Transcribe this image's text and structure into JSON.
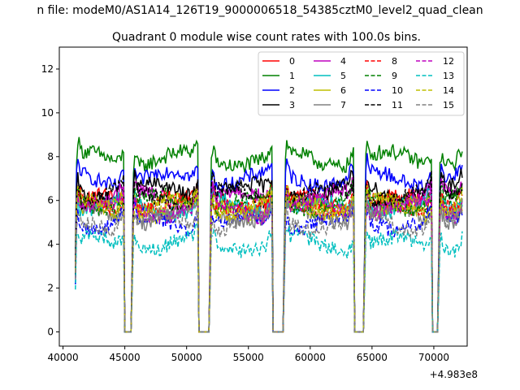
{
  "chart_data": {
    "type": "line",
    "suptitle": "n file: modeM0/AS1A14_126T19_9000006518_54385cztM0_level2_quad_clean",
    "title": "Quadrant 0 module wise count rates with 100.0s bins.",
    "xlabel": "",
    "ylabel": "",
    "offset_label": "+4.983e8",
    "xlim": [
      39700,
      72700
    ],
    "ylim": [
      -0.65,
      13.0
    ],
    "xticks": [
      40000,
      45000,
      50000,
      55000,
      60000,
      65000,
      70000
    ],
    "xtick_labels": [
      "40000",
      "45000",
      "50000",
      "55000",
      "60000",
      "65000",
      "70000"
    ],
    "yticks": [
      0,
      2,
      4,
      6,
      8,
      10,
      12
    ],
    "ytick_labels": [
      "0",
      "2",
      "4",
      "6",
      "8",
      "10",
      "12"
    ],
    "legend_location": "top-right",
    "bin_size_s": 100,
    "x_start": 41000,
    "x_end": 72300,
    "segments": [
      [
        41000,
        44900
      ],
      [
        45600,
        50900
      ],
      [
        51900,
        56900
      ],
      [
        57900,
        63500
      ],
      [
        64400,
        69800
      ],
      [
        70400,
        72300
      ]
    ],
    "gap_level": 0,
    "series": [
      {
        "name": "0",
        "color": "#ff0000",
        "dash": "solid",
        "level": 5.9
      },
      {
        "name": "1",
        "color": "#008000",
        "dash": "solid",
        "level": 7.9
      },
      {
        "name": "2",
        "color": "#0000ff",
        "dash": "solid",
        "level": 7.0
      },
      {
        "name": "3",
        "color": "#000000",
        "dash": "solid",
        "level": 6.4
      },
      {
        "name": "4",
        "color": "#bf00bf",
        "dash": "solid",
        "level": 6.1
      },
      {
        "name": "5",
        "color": "#00bfbf",
        "dash": "solid",
        "level": 5.7
      },
      {
        "name": "6",
        "color": "#bfbf00",
        "dash": "solid",
        "level": 5.6
      },
      {
        "name": "7",
        "color": "#808080",
        "dash": "solid",
        "level": 5.3
      },
      {
        "name": "8",
        "color": "#ff0000",
        "dash": "dashed",
        "level": 5.8
      },
      {
        "name": "9",
        "color": "#008000",
        "dash": "dashed",
        "level": 5.9
      },
      {
        "name": "10",
        "color": "#0000ff",
        "dash": "dashed",
        "level": 5.0
      },
      {
        "name": "11",
        "color": "#000000",
        "dash": "dashed",
        "level": 6.2
      },
      {
        "name": "12",
        "color": "#bf00bf",
        "dash": "dashed",
        "level": 5.6
      },
      {
        "name": "13",
        "color": "#00bfbf",
        "dash": "dashed",
        "level": 4.0
      },
      {
        "name": "14",
        "color": "#bfbf00",
        "dash": "dashed",
        "level": 5.7
      },
      {
        "name": "15",
        "color": "#808080",
        "dash": "dashed",
        "level": 5.0
      }
    ]
  }
}
